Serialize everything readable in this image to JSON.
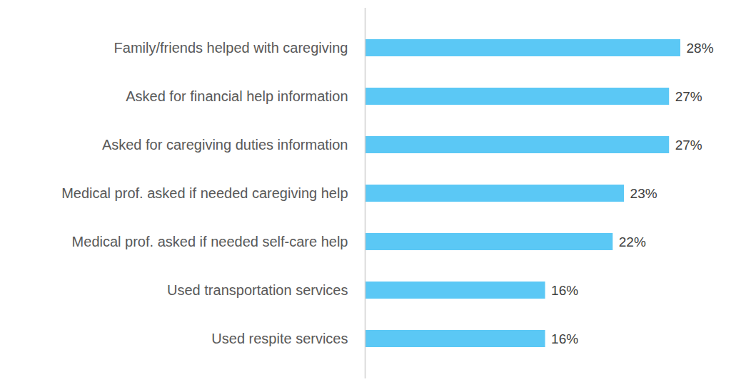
{
  "chart_data": {
    "type": "bar",
    "orientation": "horizontal",
    "categories": [
      "Family/friends helped with caregiving",
      "Asked for financial help information",
      "Asked for caregiving duties information",
      "Medical prof. asked if needed caregiving help",
      "Medical prof. asked if needed self-care help",
      "Used transportation services",
      "Used respite services"
    ],
    "values": [
      28,
      27,
      27,
      23,
      22,
      16,
      16
    ],
    "value_labels": [
      "28%",
      "27%",
      "27%",
      "23%",
      "22%",
      "16%",
      "16%"
    ],
    "color": "#5bc8f5",
    "xlim": [
      0,
      28
    ],
    "data_labels": true,
    "tick_labels": "y",
    "grid": false
  }
}
